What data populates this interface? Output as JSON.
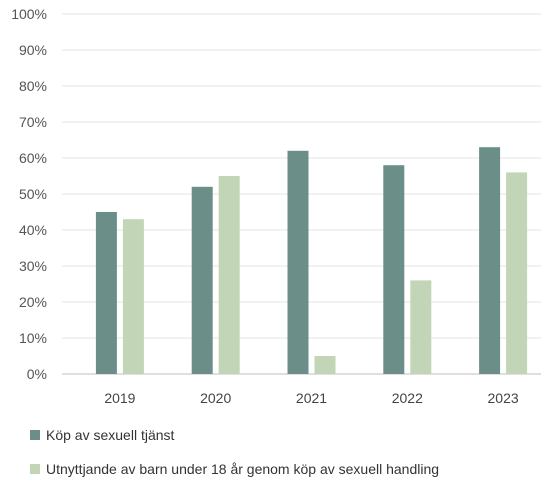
{
  "chart_data": {
    "type": "bar",
    "categories": [
      "2019",
      "2020",
      "2021",
      "2022",
      "2023"
    ],
    "series": [
      {
        "name": "Köp av sexuell tjänst",
        "values": [
          45,
          52,
          62,
          58,
          63
        ],
        "color": "#6b8f88"
      },
      {
        "name": "Utnyttjande av barn under 18 år genom köp av sexuell handling",
        "values": [
          43,
          55,
          5,
          26,
          56
        ],
        "color": "#c2d6b7"
      }
    ],
    "ylim": [
      0,
      100
    ],
    "yticks": [
      "0%",
      "10%",
      "20%",
      "30%",
      "40%",
      "50%",
      "60%",
      "70%",
      "80%",
      "90%",
      "100%"
    ],
    "grid": true,
    "legend_position": "bottom-left"
  }
}
